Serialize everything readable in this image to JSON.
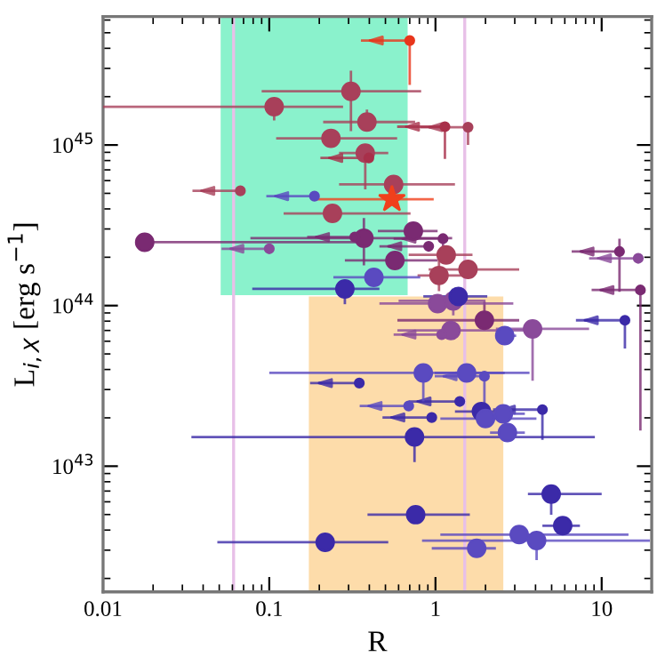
{
  "chart_data": {
    "type": "scatter",
    "xlabel": "R",
    "ylabel": "L$_{i,X}$ [erg s$^{−1}$]",
    "log": "xy",
    "grid": false,
    "xlim": [
      0.01,
      20
    ],
    "ylim": [
      1.65e+42,
      6.3e+45
    ],
    "xticks": [
      0.01,
      0.1,
      1,
      10
    ],
    "yticks": [
      {
        "value": 1e+43,
        "label": "10$^{43}$"
      },
      {
        "value": 1e+44,
        "label": "10$^{44}$"
      },
      {
        "value": 1e+45,
        "label": "10$^{45}$"
      }
    ],
    "ref_lines": [
      {
        "axis": "x",
        "value": 0.061,
        "color": "#e8c0e8"
      },
      {
        "axis": "x",
        "value": 1.5,
        "color": "#e8c0e8"
      }
    ],
    "series": [
      {
        "type": "line",
        "color": "#8af2cc",
        "x": [
          0.051,
          0.68
        ],
        "values": [
          null,
          null
        ],
        "lower": [
          1.16e+44,
          1.16e+44
        ],
        "upper": [
          6.3e+45,
          6.3e+45
        ]
      },
      {
        "type": "line",
        "color": "#fddcaa",
        "x": [
          0.173,
          2.56
        ],
        "values": [
          null,
          null
        ],
        "lower": [
          1.65e+42,
          1.65e+42
        ],
        "upper": [
          1.14e+44,
          1.14e+44
        ]
      },
      {
        "color": "#e8361c",
        "marker": "circle",
        "x": [
          0.7
        ],
        "values": [
          4.47e+45
        ],
        "sizes": [
          0.25
        ],
        "xerrors": [
          [
            0.356,
            0.7
          ]
        ],
        "errors": [
          [
            2.37e+45,
            4.47e+45
          ]
        ]
      },
      {
        "color": "#a8405a",
        "marker": "circle",
        "x": [
          0.31,
          0.107,
          0.387,
          0.235,
          0.378,
          0.56,
          0.24,
          1.16,
          1.05,
          1.57,
          1.57,
          0.067
        ],
        "values": [
          2.16e+45,
          1.73e+45,
          1.39e+45,
          1.1e+45,
          8.9e+44,
          5.68e+44,
          3.75e+44,
          2.07e+44,
          1.54e+44,
          1.68e+44,
          1.29e+45,
          5.18e+44
        ],
        "sizes": [
          1,
          1,
          1,
          1,
          1,
          1,
          1,
          1,
          1,
          1,
          0.25,
          0.25
        ],
        "xerrors": [
          [
            0.09,
            0.82
          ],
          [
            0.01,
            0.278
          ],
          [
            0.211,
            0.754
          ],
          [
            0.11,
            0.588
          ],
          [
            0.263,
            0.52
          ],
          [
            0.263,
            1.31
          ],
          [
            0.122,
            0.708
          ],
          [
            0.69,
            1.67
          ],
          [
            0.78,
            1.54
          ],
          [
            0.91,
            3.19
          ],
          [
            0.81,
            1.57
          ],
          [
            0.0345,
            0.067
          ]
        ],
        "errors": [
          [
            1.22e+45,
            2.9e+45
          ],
          [
            1.42e+45,
            1.73e+45
          ],
          [
            1.22e+45,
            1.66e+45
          ],
          [
            1e+45,
            1.19e+45
          ],
          [
            5.3e+44,
            8.9e+44
          ],
          [
            4.9e+44,
            6.3e+44
          ],
          [
            3.44e+44,
            4.09e+44
          ],
          null,
          [
            1.23e+44,
            1.94e+44
          ],
          null,
          [
            1e+45,
            1.29e+45
          ],
          null
        ]
      },
      {
        "color": "#a8304a",
        "marker": "circle",
        "x": [
          1.14,
          0.397
        ],
        "values": [
          1.3e+45,
          8.3e+44
        ],
        "sizes": [
          0.25,
          0.25
        ],
        "xerrors": [
          [
            0.588,
            1.14
          ],
          [
            0.203,
            0.397
          ]
        ],
        "errors": [
          [
            8.2e+44,
            1.3e+45
          ],
          null
        ]
      },
      {
        "color": "#7a2a72",
        "marker": "circle",
        "x": [
          0.0178,
          0.371,
          0.327,
          0.736,
          0.91,
          1.11,
          0.57,
          12.8,
          17.1,
          1.97
        ],
        "values": [
          2.48e+44,
          2.63e+44,
          2.67e+44,
          2.91e+44,
          2.34e+44,
          2.61e+44,
          1.91e+44,
          2.17e+44,
          1.25e+44,
          8.1e+43
        ],
        "sizes": [
          1,
          1,
          0.25,
          1,
          0.25,
          0.25,
          1,
          0.25,
          0.25,
          1
        ],
        "xerrors": [
          [
            0.0178,
            0.335
          ],
          [
            0.077,
            1.26
          ],
          [
            0.169,
            0.327
          ],
          [
            0.45,
            1.03
          ],
          [
            0.46,
            0.91
          ],
          [
            0.56,
            1.11
          ],
          [
            0.285,
            1.03
          ],
          [
            6.6,
            12.8
          ],
          [
            8.7,
            17.1
          ],
          [
            0.59,
            3.19
          ]
        ],
        "errors": [
          [
            2.2e+44,
            2.48e+44
          ],
          [
            1.78e+44,
            3.51e+44
          ],
          null,
          null,
          null,
          [
            1.94e+44,
            2.61e+44
          ],
          null,
          [
            1.22e+44,
            2.61e+44
          ],
          [
            1.67e+43,
            1.25e+44
          ],
          [
            8.1e+43,
            1.06e+44
          ]
        ]
      },
      {
        "color": "#8a4a9a",
        "marker": "circle",
        "x": [
          0.1,
          16.6,
          1.03,
          1.28,
          3.84,
          1.24,
          1.09
        ],
        "values": [
          2.26e+44,
          1.97e+44,
          1.03e+44,
          1.07e+44,
          7.16e+43,
          7e+43,
          6.6e+43
        ],
        "sizes": [
          0.25,
          0.25,
          1,
          1,
          1,
          1,
          0.25
        ],
        "xerrors": [
          [
            0.0516,
            0.1
          ],
          [
            8.4,
            16.6
          ],
          [
            0.46,
            2.94
          ],
          [
            0.6,
            2.0
          ],
          [
            2.31,
            8.4
          ],
          [
            0.59,
            4.0
          ],
          [
            0.56,
            1.09
          ]
        ],
        "errors": [
          null,
          null,
          null,
          [
            8.7e+43,
            1.07e+44
          ],
          [
            3.4e+43,
            7.16e+43
          ],
          null,
          null
        ]
      },
      {
        "color": "#3b2aa8",
        "marker": "circle",
        "x": [
          0.285,
          13.8,
          1.37,
          0.348,
          1.4,
          0.95,
          1.89,
          4.4,
          0.748,
          4.97,
          0.76,
          5.83,
          0.217
        ],
        "values": [
          1.27e+44,
          8.1e+43,
          1.14e+44,
          3.29e+43,
          2.53e+43,
          2.01e+43,
          2.19e+43,
          2.25e+43,
          1.52e+43,
          6.71e+42,
          4.99e+42,
          4.26e+42,
          3.36e+42
        ],
        "sizes": [
          1,
          0.25,
          1,
          0.25,
          0.25,
          0.25,
          1,
          0.25,
          1,
          1,
          1,
          1,
          1
        ],
        "xerrors": [
          [
            0.079,
            0.46
          ],
          [
            7.0,
            13.8
          ],
          [
            0.845,
            2.05
          ],
          [
            0.176,
            0.348
          ],
          [
            0.69,
            1.4
          ],
          [
            0.48,
            0.95
          ],
          [
            1.31,
            2.94
          ],
          [
            2.22,
            4.4
          ],
          [
            0.034,
            9.1
          ],
          [
            3.6,
            10.0
          ],
          [
            0.39,
            1.61
          ],
          [
            4.4,
            7.4
          ],
          [
            0.0487,
            0.52
          ]
        ],
        "errors": [
          [
            1.02e+44,
            1.27e+44
          ],
          [
            5.4e+43,
            8.1e+43
          ],
          null,
          null,
          null,
          null,
          null,
          [
            1.46e+43,
            2.25e+43
          ],
          [
            1.06e+43,
            1.52e+43
          ],
          [
            4.99e+42,
            6.71e+42
          ],
          null,
          null,
          null
        ]
      },
      {
        "color": "#5a4ac0",
        "marker": "circle",
        "x": [
          0.187,
          0.426,
          2.61,
          0.845,
          1.54,
          1.97,
          0.69,
          2.0,
          2.56,
          2.71,
          3.19,
          4.06,
          1.77
        ],
        "values": [
          4.8e+44,
          1.5e+44,
          6.5e+43,
          3.81e+43,
          3.81e+43,
          3.63e+43,
          2.37e+43,
          1.98e+43,
          2.12e+43,
          1.62e+43,
          3.75e+42,
          3.44e+42,
          3.08e+42
        ],
        "sizes": [
          0.25,
          1,
          1,
          1,
          1,
          0.25,
          0.25,
          1,
          1,
          1,
          1,
          1,
          1
        ],
        "xerrors": [
          [
            0.096,
            0.187
          ],
          [
            0.243,
            0.81
          ],
          [
            2.3,
            3.06
          ],
          [
            0.1,
            3.68
          ],
          [
            0.99,
            2.61
          ],
          [
            0.99,
            1.97
          ],
          [
            0.35,
            0.69
          ],
          [
            1.07,
            4.05
          ],
          [
            1.97,
            3.45
          ],
          [
            2.13,
            3.45
          ],
          [
            1.07,
            14.5
          ],
          [
            0.83,
            19.5
          ],
          [
            0.95,
            2.31
          ]
        ],
        "errors": [
          null,
          null,
          null,
          [
            2.53e+43,
            3.81e+43
          ],
          null,
          [
            2.14e+43,
            3.63e+43
          ],
          null,
          null,
          null,
          null,
          null,
          [
            2.6e+42,
            3.44e+42
          ],
          null
        ]
      },
      {
        "color": "#f0401c",
        "marker": "star",
        "x": [
          0.547
        ],
        "values": [
          4.59e+44
        ],
        "xerrors": [
          [
            0.188,
            0.976
          ]
        ]
      }
    ]
  }
}
